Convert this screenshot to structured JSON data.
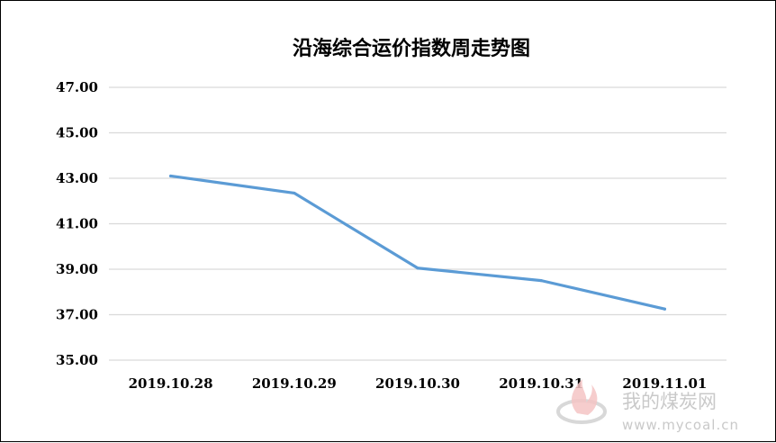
{
  "chart_data": {
    "type": "line",
    "title": "沿海综合运价指数周走势图",
    "categories": [
      "2019.10.28",
      "2019.10.29",
      "2019.10.30",
      "2019.10.31",
      "2019.11.01"
    ],
    "values": [
      43.1,
      42.35,
      39.05,
      38.5,
      37.25
    ],
    "ylim": [
      35,
      47
    ],
    "yticks": [
      "35.00",
      "37.00",
      "39.00",
      "41.00",
      "43.00",
      "45.00",
      "47.00"
    ],
    "xlabel": "",
    "ylabel": "",
    "grid": true,
    "legend": "none",
    "line_color": "#5b9bd5",
    "grid_color": "#d9d9d9"
  },
  "watermark": {
    "name": "我的煤炭网",
    "url": "www.mycoal.cn"
  }
}
